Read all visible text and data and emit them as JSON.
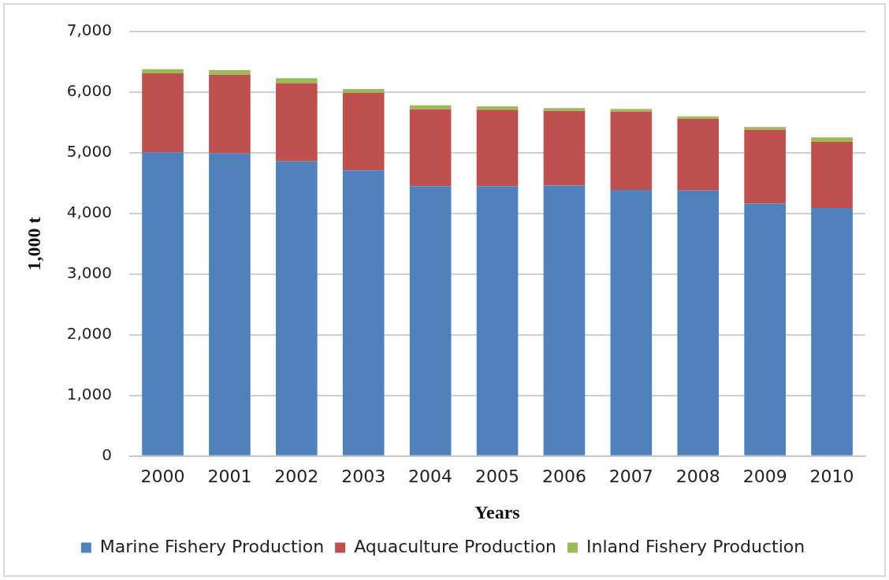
{
  "chart_data": {
    "type": "bar",
    "stacked": true,
    "xlabel": "Years",
    "ylabel": "1,000 t",
    "categories": [
      "2000",
      "2001",
      "2002",
      "2003",
      "2004",
      "2005",
      "2006",
      "2007",
      "2008",
      "2009",
      "2010"
    ],
    "series": [
      {
        "name": "Marine Fishery Production",
        "color": "#4f81bd",
        "values": [
          5010,
          4990,
          4860,
          4710,
          4450,
          4450,
          4460,
          4390,
          4380,
          4160,
          4090
        ]
      },
      {
        "name": "Aquaculture Production",
        "color": "#c0504d",
        "values": [
          1300,
          1300,
          1290,
          1280,
          1270,
          1260,
          1230,
          1290,
          1180,
          1220,
          1090
        ]
      },
      {
        "name": "Inland Fishery Production",
        "color": "#9bbb59",
        "values": [
          70,
          75,
          80,
          60,
          65,
          55,
          45,
          45,
          40,
          45,
          75
        ]
      }
    ],
    "ylim": [
      0,
      7000
    ],
    "yticks": [
      {
        "value": 0,
        "label": "0"
      },
      {
        "value": 1000,
        "label": "1,000"
      },
      {
        "value": 2000,
        "label": "2,000"
      },
      {
        "value": 3000,
        "label": "3,000"
      },
      {
        "value": 4000,
        "label": "4,000"
      },
      {
        "value": 5000,
        "label": "5,000"
      },
      {
        "value": 6000,
        "label": "6,000"
      },
      {
        "value": 7000,
        "label": "7,000"
      }
    ],
    "grid": "y",
    "legend": "bottom"
  }
}
